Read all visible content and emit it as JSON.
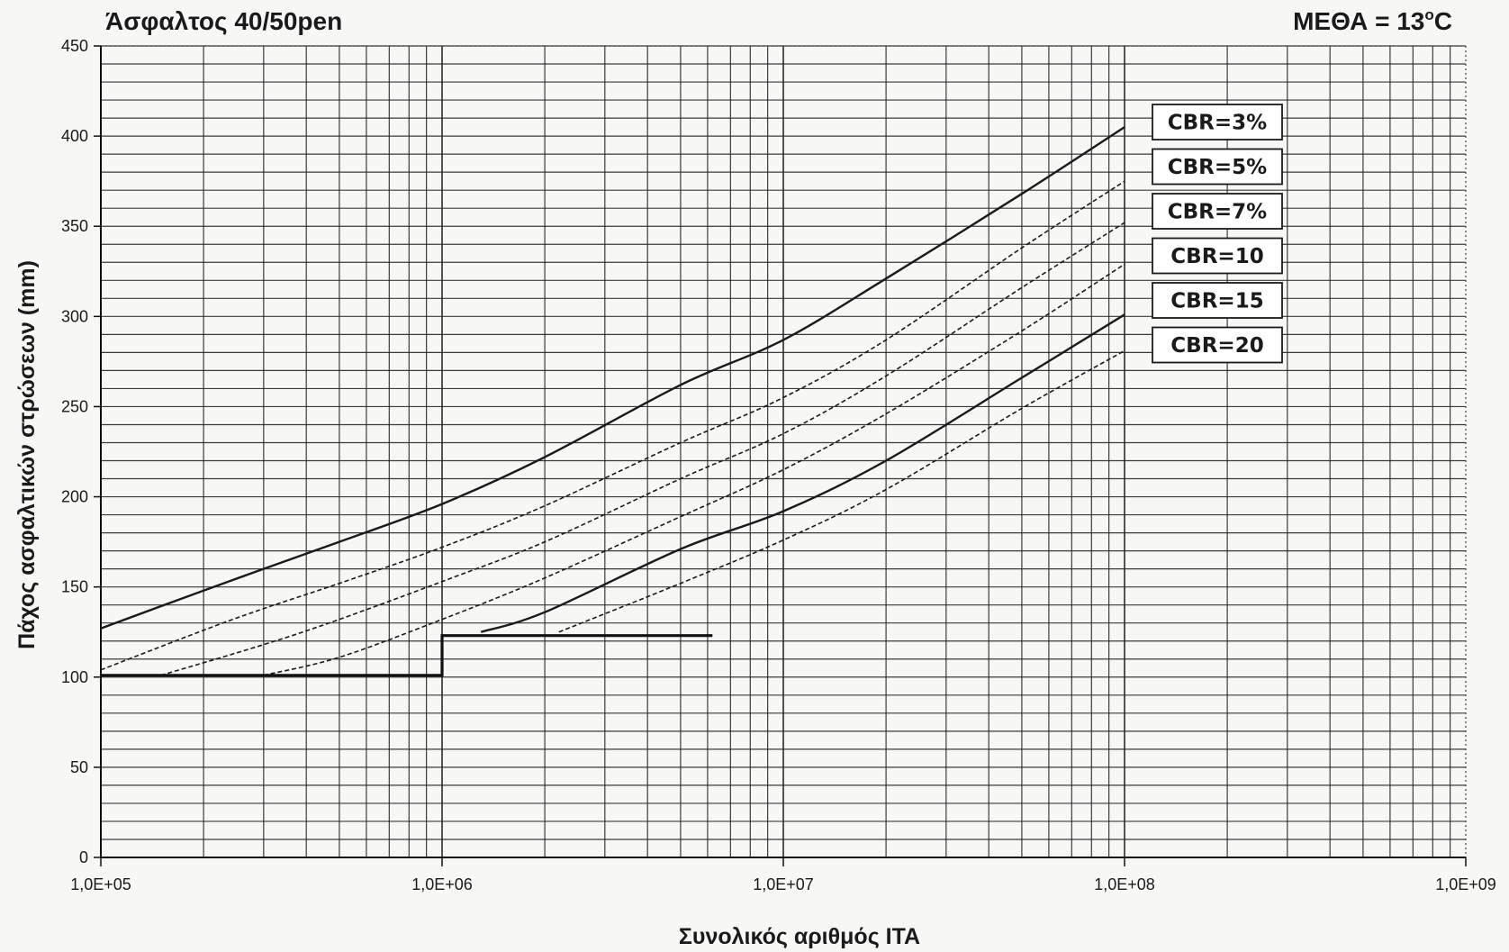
{
  "chart_data": {
    "type": "line",
    "title": "Άσφαλτος 40/50pen",
    "subtitle_prefix": "ΜΕΘΑ = 13",
    "subtitle_sup": "o",
    "subtitle_suffix": "C",
    "xlabel": "Συνολικός αριθμός ΙΤΑ",
    "ylabel": "Πάχος ασφαλτικών στρώσεων (mm)",
    "xscale": "log",
    "xlim": [
      100000,
      1000000000
    ],
    "ylim": [
      0,
      450
    ],
    "grid": true,
    "legend_position": "top-right",
    "x_tick_labels": [
      {
        "value": 100000,
        "label": "1,0E+05"
      },
      {
        "value": 1000000,
        "label": "1,0E+06"
      },
      {
        "value": 10000000,
        "label": "1,0E+07"
      },
      {
        "value": 100000000,
        "label": "1,0E+08"
      },
      {
        "value": 1000000000,
        "label": "1,0E+09"
      }
    ],
    "y_ticks": [
      0,
      50,
      100,
      150,
      200,
      250,
      300,
      350,
      400,
      450
    ],
    "series": [
      {
        "name": "CBR=3%",
        "style": "solid",
        "x": [
          100000,
          200000,
          300000,
          500000,
          1000000,
          2000000,
          5000000,
          10000000,
          20000000,
          50000000,
          100000000
        ],
        "y": [
          127,
          148,
          160,
          175,
          196,
          222,
          262,
          287,
          321,
          368,
          405
        ]
      },
      {
        "name": "CBR=5%",
        "style": "dashed",
        "x": [
          100000,
          200000,
          300000,
          500000,
          1000000,
          2000000,
          5000000,
          10000000,
          20000000,
          50000000,
          100000000
        ],
        "y": [
          104,
          126,
          138,
          152,
          172,
          195,
          230,
          255,
          287,
          338,
          375
        ]
      },
      {
        "name": "CBR=7%",
        "style": "dashed",
        "x": [
          150000,
          300000,
          500000,
          1000000,
          2000000,
          5000000,
          10000000,
          20000000,
          50000000,
          100000000
        ],
        "y": [
          101,
          118,
          132,
          153,
          175,
          210,
          235,
          267,
          316,
          352
        ]
      },
      {
        "name": "CBR=10",
        "style": "dashed",
        "x": [
          300000,
          500000,
          1000000,
          2000000,
          5000000,
          10000000,
          20000000,
          50000000,
          100000000
        ],
        "y": [
          101,
          111,
          132,
          155,
          189,
          215,
          246,
          292,
          329
        ]
      },
      {
        "name": "CBR=15",
        "style": "solid",
        "x": [
          1300000,
          2000000,
          5000000,
          10000000,
          20000000,
          50000000,
          100000000
        ],
        "y": [
          125,
          136,
          171,
          192,
          220,
          266,
          301
        ]
      },
      {
        "name": "CBR=20",
        "style": "dashed",
        "x": [
          2200000,
          5000000,
          10000000,
          20000000,
          50000000,
          100000000
        ],
        "y": [
          125,
          152,
          176,
          204,
          249,
          281
        ]
      }
    ],
    "minimum_thickness": {
      "style": "thick",
      "x": [
        100000,
        1000000,
        1000000,
        6200000
      ],
      "y": [
        101,
        101,
        123,
        123
      ]
    }
  }
}
